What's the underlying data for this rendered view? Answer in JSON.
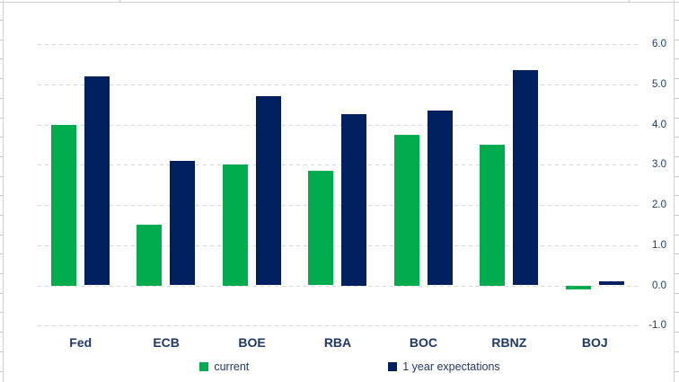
{
  "chart_data": {
    "type": "bar",
    "title": "",
    "xlabel": "",
    "ylabel": "",
    "categories": [
      "Fed",
      "ECB",
      "BOE",
      "RBA",
      "BOC",
      "RBNZ",
      "BOJ"
    ],
    "series": [
      {
        "name": "current",
        "color": "#00AC4D",
        "values": [
          4.0,
          1.5,
          3.0,
          2.85,
          3.75,
          3.5,
          -0.1
        ]
      },
      {
        "name": "1 year expectations",
        "color": "#002060",
        "values": [
          5.2,
          3.1,
          4.7,
          4.25,
          4.35,
          5.35,
          0.1
        ]
      }
    ],
    "ylim": [
      -1.0,
      6.0
    ],
    "yticks": [
      6.0,
      5.0,
      4.0,
      3.0,
      2.0,
      1.0,
      0.0,
      -1.0
    ],
    "ytick_labels": [
      "6.0",
      "5.0",
      "4.0",
      "3.0",
      "2.0",
      "1.0",
      "0.0",
      "-1.0"
    ],
    "y_axis_side": "right",
    "grid": "dashed-horizontal",
    "legend_position": "bottom",
    "colors": {
      "gridline": "#d9d9d9",
      "axis_text": "#1f3864",
      "category_text": "#1f3864",
      "spreadsheet_border": "#d2d2d2",
      "chart_background": "#ffffff"
    }
  }
}
